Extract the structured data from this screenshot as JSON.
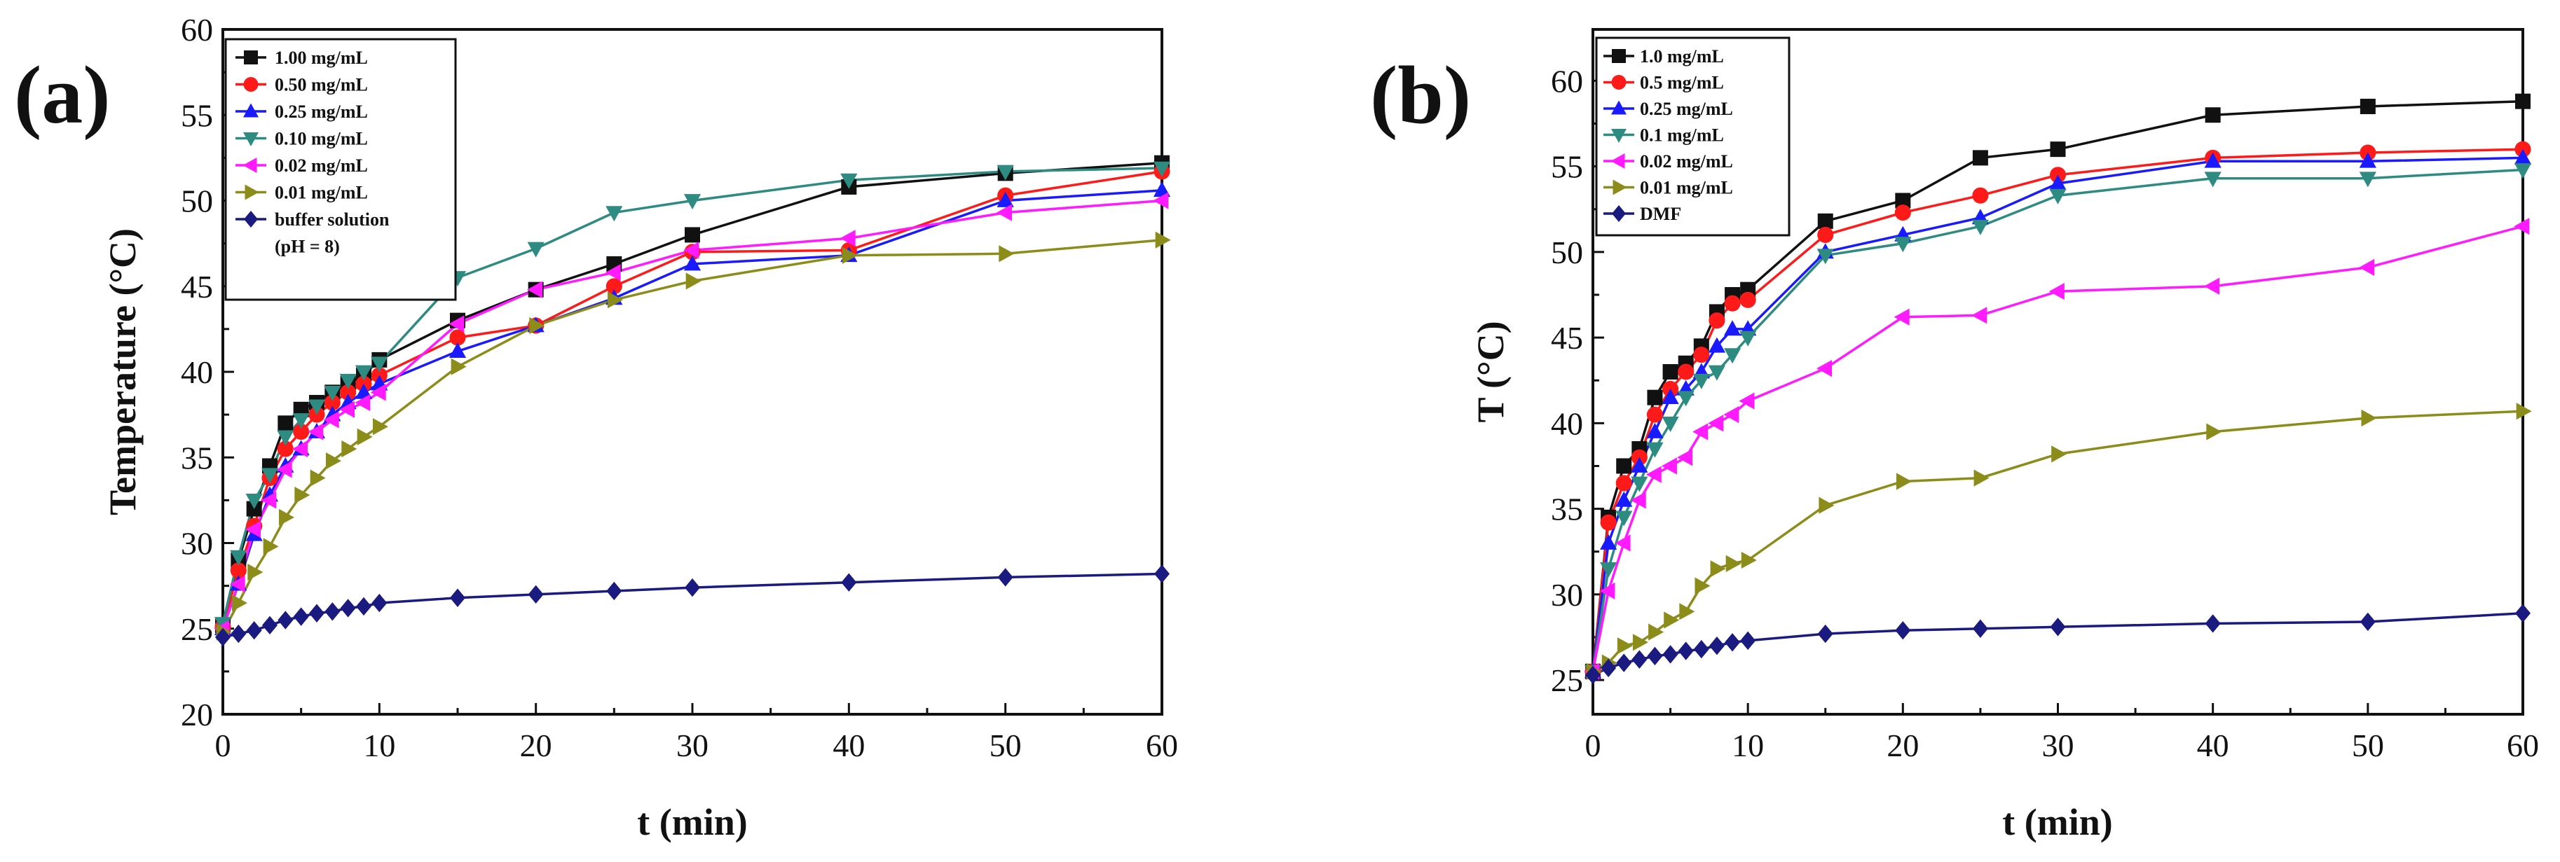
{
  "chart_data": [
    {
      "type": "line",
      "panel_label": "(a)",
      "xlabel": "t (min)",
      "ylabel": "Temperature (°C)",
      "xlim": [
        0,
        60
      ],
      "ylim": [
        20,
        60
      ],
      "xticks": [
        0,
        10,
        20,
        30,
        40,
        50,
        60
      ],
      "yticks": [
        20,
        25,
        30,
        35,
        40,
        45,
        50,
        55,
        60
      ],
      "legend_position": "top-left",
      "series": [
        {
          "name": "1.00 mg/mL",
          "color": "#111111",
          "marker": "square",
          "x": [
            0,
            1,
            2,
            3,
            4,
            5,
            6,
            7,
            8,
            9,
            10,
            15,
            20,
            25,
            30,
            40,
            50,
            60
          ],
          "y": [
            25.2,
            29.0,
            32.0,
            34.5,
            37.0,
            37.8,
            38.2,
            38.8,
            39.3,
            39.8,
            40.7,
            43.0,
            44.8,
            46.3,
            48.0,
            50.8,
            51.6,
            52.2
          ]
        },
        {
          "name": "0.50 mg/mL",
          "color": "#ff1a1a",
          "marker": "circle",
          "x": [
            0,
            1,
            2,
            3,
            4,
            5,
            6,
            7,
            8,
            9,
            10,
            15,
            20,
            25,
            30,
            40,
            50,
            60
          ],
          "y": [
            25.1,
            28.4,
            31.0,
            33.8,
            35.5,
            36.5,
            37.5,
            38.2,
            38.8,
            39.3,
            39.8,
            42.0,
            42.7,
            45.0,
            47.0,
            47.1,
            50.3,
            51.7
          ]
        },
        {
          "name": "0.25 mg/mL",
          "color": "#1a1aff",
          "marker": "triangle-up",
          "x": [
            0,
            1,
            2,
            3,
            4,
            5,
            6,
            7,
            8,
            9,
            10,
            15,
            20,
            25,
            30,
            40,
            50,
            60
          ],
          "y": [
            25.0,
            27.6,
            30.5,
            32.8,
            34.5,
            35.5,
            36.5,
            37.5,
            38.2,
            38.8,
            39.3,
            41.2,
            42.7,
            44.3,
            46.3,
            46.8,
            50.0,
            50.6
          ]
        },
        {
          "name": "0.10 mg/mL",
          "color": "#2e8b82",
          "marker": "triangle-down",
          "x": [
            0,
            1,
            2,
            3,
            4,
            5,
            6,
            7,
            8,
            9,
            10,
            15,
            20,
            25,
            30,
            40,
            50,
            60
          ],
          "y": [
            25.3,
            29.2,
            32.5,
            34.0,
            36.2,
            37.2,
            38.0,
            38.8,
            39.5,
            40.0,
            40.5,
            45.5,
            47.2,
            49.3,
            50.0,
            51.2,
            51.7,
            51.9
          ]
        },
        {
          "name": "0.02 mg/mL",
          "color": "#ff1aff",
          "marker": "triangle-left",
          "x": [
            0,
            1,
            2,
            3,
            4,
            5,
            6,
            7,
            8,
            9,
            10,
            15,
            20,
            25,
            30,
            40,
            50,
            60
          ],
          "y": [
            25.0,
            27.6,
            30.8,
            32.5,
            34.3,
            35.5,
            36.5,
            37.2,
            37.8,
            38.2,
            38.8,
            42.8,
            44.8,
            45.8,
            47.1,
            47.8,
            49.3,
            50.0
          ]
        },
        {
          "name": "0.01 mg/mL",
          "color": "#8c8c1a",
          "marker": "triangle-right",
          "x": [
            0,
            1,
            2,
            3,
            4,
            5,
            6,
            7,
            8,
            9,
            10,
            15,
            20,
            25,
            30,
            40,
            50,
            60
          ],
          "y": [
            24.8,
            26.5,
            28.3,
            29.8,
            31.5,
            32.8,
            33.8,
            34.8,
            35.5,
            36.2,
            36.8,
            40.3,
            42.7,
            44.2,
            45.3,
            46.8,
            46.9,
            47.7
          ]
        },
        {
          "name": "buffer solution",
          "name_line2": "(pH = 8)",
          "color": "#1a1a80",
          "marker": "diamond",
          "x": [
            0,
            1,
            2,
            3,
            4,
            5,
            6,
            7,
            8,
            9,
            10,
            15,
            20,
            25,
            30,
            40,
            50,
            60
          ],
          "y": [
            24.5,
            24.7,
            24.9,
            25.2,
            25.5,
            25.7,
            25.9,
            26.0,
            26.2,
            26.3,
            26.5,
            26.8,
            27.0,
            27.2,
            27.4,
            27.7,
            28.0,
            28.2
          ]
        }
      ]
    },
    {
      "type": "line",
      "panel_label": "(b)",
      "xlabel": "t (min)",
      "ylabel": "T (°C)",
      "xlim": [
        0,
        60
      ],
      "ylim": [
        23,
        63
      ],
      "xticks": [
        0,
        10,
        20,
        30,
        40,
        50,
        60
      ],
      "yticks": [
        25,
        30,
        35,
        40,
        45,
        50,
        55,
        60
      ],
      "legend_position": "top-left",
      "series": [
        {
          "name": "1.0 mg/mL",
          "color": "#111111",
          "marker": "square",
          "x": [
            0,
            1,
            2,
            3,
            4,
            5,
            6,
            7,
            8,
            9,
            10,
            15,
            20,
            25,
            30,
            40,
            50,
            60
          ],
          "y": [
            25.5,
            34.5,
            37.5,
            38.5,
            41.5,
            43.0,
            43.5,
            44.5,
            46.5,
            47.5,
            47.8,
            51.8,
            53.0,
            55.5,
            56.0,
            58.0,
            58.5,
            58.8
          ]
        },
        {
          "name": "0.5 mg/mL",
          "color": "#ff1a1a",
          "marker": "circle",
          "x": [
            0,
            1,
            2,
            3,
            4,
            5,
            6,
            7,
            8,
            9,
            10,
            15,
            20,
            25,
            30,
            40,
            50,
            60
          ],
          "y": [
            25.5,
            34.2,
            36.5,
            38.0,
            40.5,
            42.0,
            43.0,
            44.0,
            46.0,
            47.0,
            47.2,
            51.0,
            52.3,
            53.3,
            54.5,
            55.5,
            55.8,
            56.0
          ]
        },
        {
          "name": "0.25 mg/mL",
          "color": "#1a1aff",
          "marker": "triangle-up",
          "x": [
            0,
            1,
            2,
            3,
            4,
            5,
            6,
            7,
            8,
            9,
            10,
            15,
            20,
            25,
            30,
            40,
            50,
            60
          ],
          "y": [
            25.5,
            33.0,
            35.5,
            37.5,
            39.5,
            41.5,
            42.0,
            43.0,
            44.5,
            45.5,
            45.5,
            50.0,
            51.0,
            52.0,
            54.0,
            55.3,
            55.3,
            55.5
          ]
        },
        {
          "name": "0.1 mg/mL",
          "color": "#2e8b82",
          "marker": "triangle-down",
          "x": [
            0,
            1,
            2,
            3,
            4,
            5,
            6,
            7,
            8,
            9,
            10,
            15,
            20,
            25,
            30,
            40,
            50,
            60
          ],
          "y": [
            25.5,
            31.5,
            34.5,
            36.5,
            38.5,
            40.0,
            41.5,
            42.5,
            43.0,
            44.0,
            45.0,
            49.8,
            50.5,
            51.5,
            53.3,
            54.3,
            54.3,
            54.8
          ]
        },
        {
          "name": "0.02 mg/mL",
          "color": "#ff1aff",
          "marker": "triangle-left",
          "x": [
            0,
            1,
            2,
            3,
            4,
            5,
            6,
            7,
            8,
            9,
            10,
            15,
            20,
            25,
            30,
            40,
            50,
            60
          ],
          "y": [
            25.5,
            30.2,
            33.0,
            35.5,
            37.0,
            37.5,
            38.0,
            39.5,
            40.0,
            40.5,
            41.3,
            43.2,
            46.2,
            46.3,
            47.7,
            48.0,
            49.1,
            51.5
          ]
        },
        {
          "name": "0.01 mg/mL",
          "color": "#8c8c1a",
          "marker": "triangle-right",
          "x": [
            0,
            1,
            2,
            3,
            4,
            5,
            6,
            7,
            8,
            9,
            10,
            15,
            20,
            25,
            30,
            40,
            50,
            60
          ],
          "y": [
            25.5,
            26.0,
            27.0,
            27.2,
            27.8,
            28.5,
            29.0,
            30.5,
            31.5,
            31.8,
            32.0,
            35.2,
            36.6,
            36.8,
            38.2,
            39.5,
            40.3,
            40.7
          ]
        },
        {
          "name": "DMF",
          "color": "#1a1a80",
          "marker": "diamond",
          "x": [
            0,
            1,
            2,
            3,
            4,
            5,
            6,
            7,
            8,
            9,
            10,
            15,
            20,
            25,
            30,
            40,
            50,
            60
          ],
          "y": [
            25.3,
            25.7,
            26.0,
            26.2,
            26.4,
            26.5,
            26.7,
            26.8,
            27.0,
            27.2,
            27.3,
            27.7,
            27.9,
            28.0,
            28.1,
            28.3,
            28.4,
            28.9
          ]
        }
      ]
    }
  ]
}
